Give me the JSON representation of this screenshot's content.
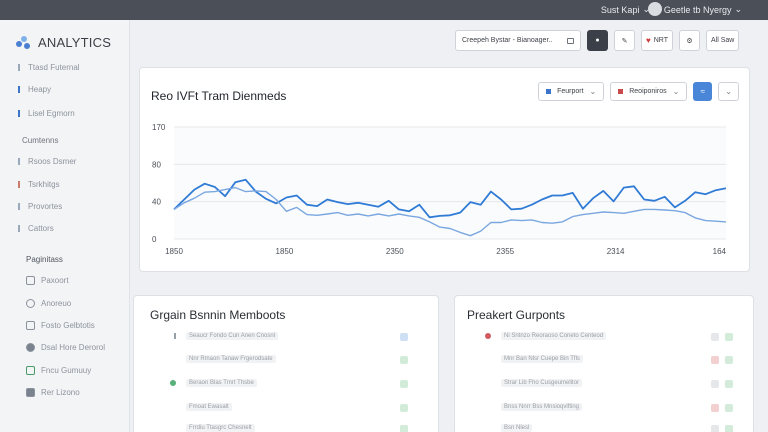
{
  "topbar": {
    "user_label": "Sust Kapi",
    "user_chev": "⌄",
    "account_label": "Geetle tb Nyergy",
    "account_chev": "⌄"
  },
  "sidebar": {
    "brand": "ANALYTICS",
    "items": [
      {
        "label": "Ttasd Futernal"
      },
      {
        "label": "Heapy"
      },
      {
        "label": "Lisel Egmorn"
      }
    ],
    "section1": "Cumtenns",
    "items2": [
      {
        "label": "Rsoos Dsmer"
      },
      {
        "label": "Tsrkhitgs"
      },
      {
        "label": "Provortes"
      },
      {
        "label": "Cattors"
      }
    ],
    "section2": "Paginitass",
    "items3": [
      {
        "label": "Paxoort"
      },
      {
        "label": "Anoreuo"
      },
      {
        "label": "Fosto Gelbtotis"
      },
      {
        "label": "Dsal Hore Derorol"
      },
      {
        "label": "Fncu Gumuuy"
      },
      {
        "label": "Rer Lizono"
      }
    ]
  },
  "header": {
    "search_label": "Creepeh Bystar - Bianoager..",
    "btn2_label": "NRT",
    "btn4_label": "All Saw"
  },
  "chart_card": {
    "title": "Reo IVFt Tram Dienmeds",
    "dd1_label": "Feurport",
    "dd2_label": "Reoiponiros"
  },
  "chart_data": {
    "type": "line",
    "x_tick_labels": [
      "1850",
      "1850",
      "2350",
      "2355",
      "2314",
      "164"
    ],
    "y_tick_labels": [
      "170",
      "80",
      "40",
      "0"
    ],
    "ylim": [
      0,
      170
    ],
    "grid": true,
    "series": [
      {
        "color": "#2f7bd6",
        "values": [
          45,
          60,
          75,
          84,
          79,
          65,
          86,
          90,
          72,
          61,
          54,
          63,
          66,
          52,
          50,
          60,
          56,
          53,
          55,
          52,
          49,
          58,
          45,
          42,
          52,
          33,
          35,
          36,
          40,
          56,
          52,
          72,
          60,
          45,
          46,
          52,
          60,
          66,
          66,
          70,
          46,
          62,
          73,
          57,
          78,
          80,
          60,
          58,
          64,
          48,
          58,
          71,
          68,
          74,
          77
        ]
      },
      {
        "color": "#7aa7e0",
        "values": [
          45,
          55,
          62,
          71,
          72,
          75,
          78,
          72,
          73,
          72,
          60,
          42,
          48,
          37,
          36,
          38,
          40,
          36,
          38,
          35,
          38,
          35,
          38,
          35,
          33,
          26,
          18,
          16,
          10,
          5,
          12,
          25,
          25,
          29,
          28,
          29,
          25,
          24,
          26,
          34,
          37,
          39,
          41,
          40,
          39,
          42,
          45,
          45,
          44,
          43,
          40,
          32,
          28,
          27,
          26
        ]
      }
    ]
  },
  "panel_left": {
    "title": "Grgain Bsnnin Memboots",
    "rows": [
      {
        "label": "Seaucr Fondo Cun Anen Cnosnl"
      },
      {
        "label": "Nnr Rmaon Tanaw Frgerodsate"
      },
      {
        "label": "Beraon Blas Tmrt Thsbe"
      },
      {
        "label": "Fmoat Ewasalt"
      },
      {
        "label": "Frrdiu Ttasgrc Chesnelt"
      }
    ]
  },
  "panel_right": {
    "title": "Preakert Gurponts",
    "rows": [
      {
        "label": "Ni Sntnzo Reoraoso Coneto Centeod"
      },
      {
        "label": "Mnr Ban Nlsr Cuepe Bin Tfls"
      },
      {
        "label": "Strar Lib Fho Cusgeumelitor"
      },
      {
        "label": "Bnss Nnrr Bss Mnsioqvifting"
      },
      {
        "label": "Bsn Nlesl"
      }
    ]
  }
}
